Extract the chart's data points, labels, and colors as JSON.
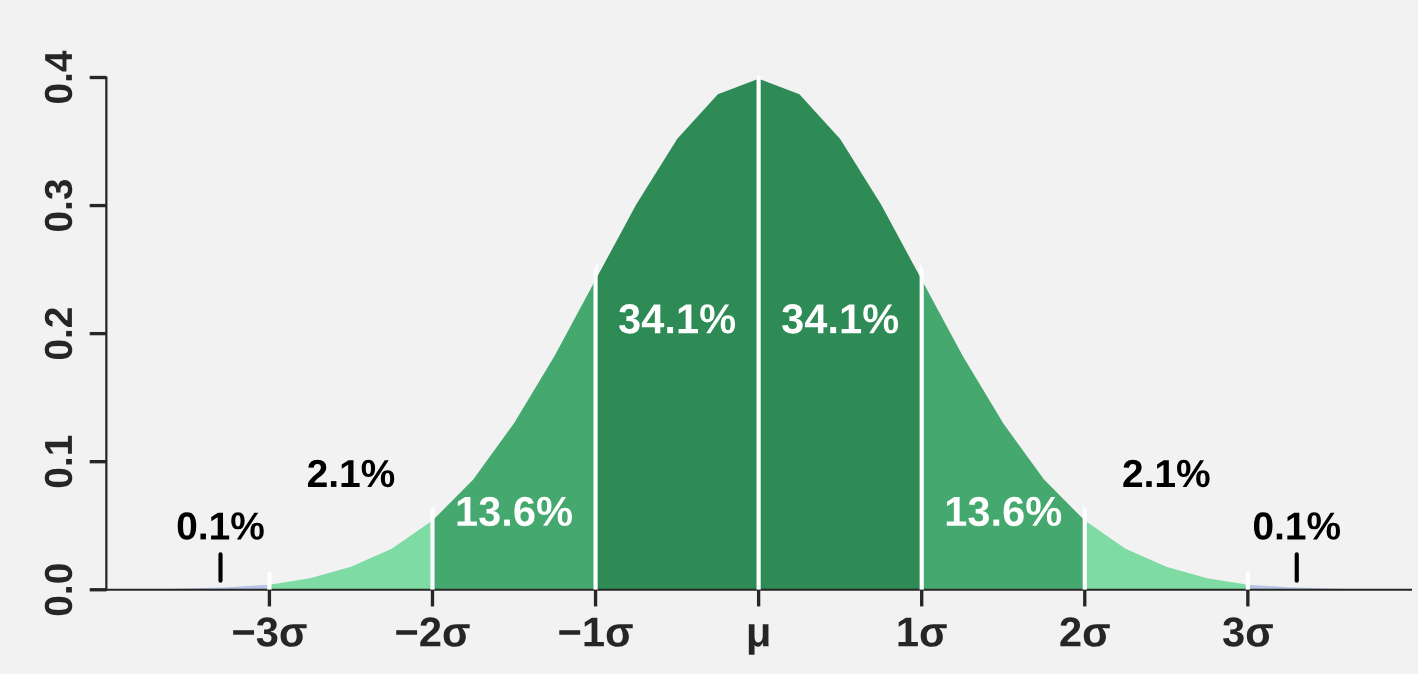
{
  "chart_data": {
    "type": "area",
    "xlim": [
      -4,
      4
    ],
    "ylim": [
      0,
      0.4
    ],
    "xticks": [
      {
        "value": -3,
        "label": "−3σ"
      },
      {
        "value": -2,
        "label": "−2σ"
      },
      {
        "value": -1,
        "label": "−1σ"
      },
      {
        "value": 0,
        "label": "μ"
      },
      {
        "value": 1,
        "label": "1σ"
      },
      {
        "value": 2,
        "label": "2σ"
      },
      {
        "value": 3,
        "label": "3σ"
      }
    ],
    "yticks": [
      {
        "value": 0,
        "label": "0.0"
      },
      0.1,
      0.2,
      0.3,
      0.4
    ],
    "grid": "x",
    "legend": false,
    "series": [
      {
        "color": "#b8c4e6",
        "x": [
          -4,
          -3.75,
          -3.5,
          -3.25,
          -3
        ],
        "values": [
          0.0,
          0.0,
          0.001,
          0.002,
          0.004
        ]
      },
      {
        "color": "#7ddba3",
        "x": [
          -3,
          -2.75,
          -2.5,
          -2.25,
          -2
        ],
        "values": [
          0.004,
          0.009,
          0.018,
          0.032,
          0.054
        ]
      },
      {
        "color": "#45a96f",
        "x": [
          -2,
          -1.75,
          -1.5,
          -1.25,
          -1
        ],
        "values": [
          0.054,
          0.086,
          0.13,
          0.183,
          0.242
        ]
      },
      {
        "color": "#2e8b55",
        "x": [
          -1,
          -0.75,
          -0.5,
          -0.25,
          0
        ],
        "values": [
          0.242,
          0.301,
          0.352,
          0.387,
          0.399
        ]
      },
      {
        "color": "#2e8b55",
        "x": [
          0,
          0.25,
          0.5,
          0.75,
          1
        ],
        "values": [
          0.399,
          0.387,
          0.352,
          0.301,
          0.242
        ]
      },
      {
        "color": "#45a96f",
        "x": [
          1,
          1.25,
          1.5,
          1.75,
          2
        ],
        "values": [
          0.242,
          0.183,
          0.13,
          0.086,
          0.054
        ]
      },
      {
        "color": "#7ddba3",
        "x": [
          2,
          2.25,
          2.5,
          2.75,
          3
        ],
        "values": [
          0.054,
          0.032,
          0.018,
          0.009,
          0.004
        ]
      },
      {
        "color": "#b8c4e6",
        "x": [
          3,
          3.25,
          3.5,
          3.75,
          4
        ],
        "values": [
          0.004,
          0.002,
          0.001,
          0.0,
          0.0
        ]
      }
    ],
    "annotations": [
      "0.1%",
      "2.1%",
      "13.6%",
      "34.1%",
      "34.1%",
      "13.6%",
      "2.1%",
      "0.1%"
    ]
  }
}
